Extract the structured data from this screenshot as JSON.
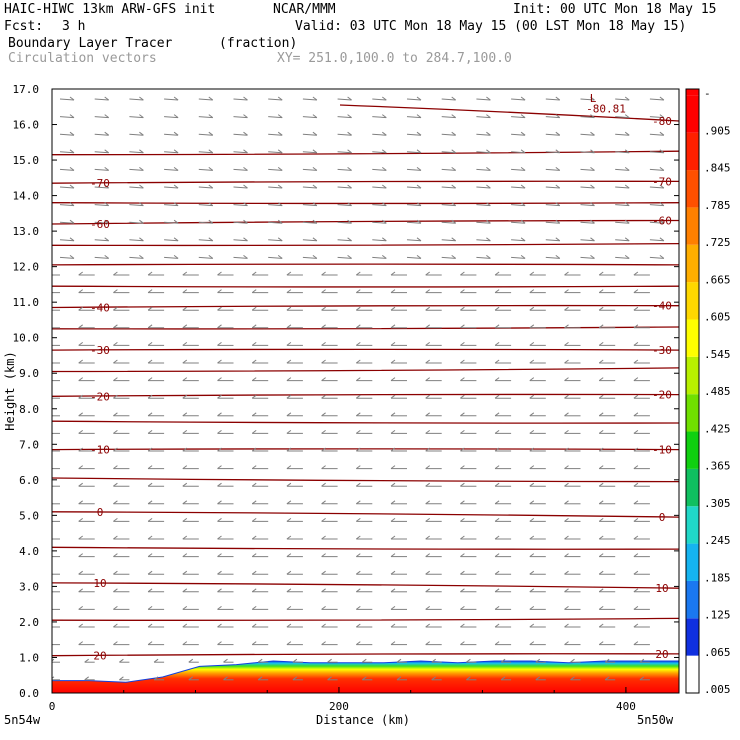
{
  "header": {
    "model": "HAIC-HIWC 13km ARW-GFS init",
    "org": "NCAR/MMM",
    "init": "Init: 00 UTC Mon 18 May 15",
    "fcst_label": "Fcst:",
    "fcst_value": "3 h",
    "valid": "Valid: 03 UTC Mon 18 May 15 (00 LST Mon 18 May 15)",
    "field": "Boundary Layer Tracer",
    "field_units": "(fraction)",
    "vectors": "Circulation vectors",
    "xy": "XY= 251.0,100.0 to 284.7,100.0"
  },
  "colors": {
    "contour": "#8b0000",
    "vector": "#808080",
    "frame": "#000000",
    "colorbar": [
      "#ffffff",
      "#1030e0",
      "#1a78f0",
      "#15b4f0",
      "#20d8c8",
      "#10c060",
      "#10d010",
      "#70e000",
      "#b8f000",
      "#ffff00",
      "#ffd800",
      "#ffae00",
      "#ff8000",
      "#ff5000",
      "#ff2000",
      "#ff0000"
    ]
  },
  "chart_data": {
    "type": "contour cross-section",
    "title": "Boundary Layer Tracer",
    "xlabel": "Distance (km)",
    "ylabel": "Height (km)",
    "xlim": [
      0,
      437
    ],
    "ylim": [
      0,
      17
    ],
    "x_ticks": [
      "0",
      "200",
      "400"
    ],
    "y_ticks": [
      "0.0",
      "1.0",
      "2.0",
      "3.0",
      "4.0",
      "5.0",
      "6.0",
      "7.0",
      "8.0",
      "9.0",
      "10.0",
      "11.0",
      "12.0",
      "13.0",
      "14.0",
      "15.0",
      "16.0",
      "17.0"
    ],
    "x_endpoints": [
      "5n54w",
      "5n50w"
    ],
    "colorbar_labels": [
      "-",
      ".905",
      ".845",
      ".785",
      ".725",
      ".665",
      ".605",
      ".545",
      ".485",
      ".425",
      ".365",
      ".305",
      ".245",
      ".185",
      ".125",
      ".065",
      ".005"
    ],
    "temperature_contours": [
      {
        "label": "20",
        "left": 1.05,
        "right": 1.1
      },
      {
        "label": "",
        "left": 2.05,
        "right": 2.1
      },
      {
        "label": "10",
        "left": 3.1,
        "right": 2.95
      },
      {
        "label": "",
        "left": 4.1,
        "right": 4.05
      },
      {
        "label": "0",
        "left": 5.1,
        "right": 4.95
      },
      {
        "label": "",
        "left": 6.05,
        "right": 5.95
      },
      {
        "label": "-10",
        "left": 6.85,
        "right": 6.85
      },
      {
        "label": "",
        "left": 7.65,
        "right": 7.6
      },
      {
        "label": "-20",
        "left": 8.35,
        "right": 8.4
      },
      {
        "label": "",
        "left": 9.05,
        "right": 9.15
      },
      {
        "label": "-30",
        "left": 9.65,
        "right": 9.65
      },
      {
        "label": "",
        "left": 10.25,
        "right": 10.3
      },
      {
        "label": "-40",
        "left": 10.85,
        "right": 10.9
      },
      {
        "label": "",
        "left": 11.45,
        "right": 11.45
      },
      {
        "label": "",
        "left": 12.05,
        "right": 12.05
      },
      {
        "label": "",
        "left": 12.6,
        "right": 12.65
      },
      {
        "label": "-60",
        "left": 13.2,
        "right": 13.3
      },
      {
        "label": "",
        "left": 13.8,
        "right": 13.8
      },
      {
        "label": "-70",
        "left": 14.35,
        "right": 14.4
      },
      {
        "label": "",
        "left": 15.15,
        "right": 15.25
      },
      {
        "label": "-80",
        "left": 16.55,
        "right": 16.1
      }
    ],
    "low_label": "L",
    "low_value": "-80.81",
    "tracer_top_km": [
      0.35,
      0.35,
      0.3,
      0.45,
      0.75,
      0.8,
      0.9,
      0.85,
      0.85,
      0.85,
      0.9,
      0.85,
      0.9,
      0.9,
      0.85,
      0.9,
      0.9,
      0.9
    ]
  }
}
